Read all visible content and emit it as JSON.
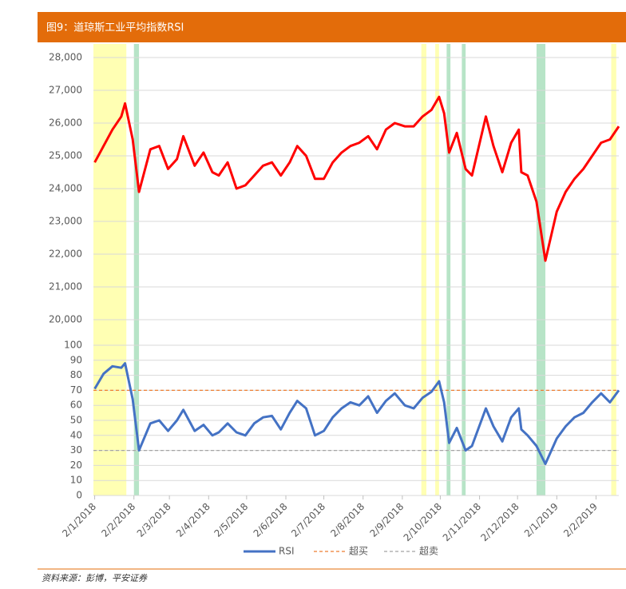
{
  "title": "图9：道琼斯工业平均指数RSI",
  "source": "资料来源：彭博，平安证券",
  "highlights": [
    {
      "start": "2018-01-01",
      "end": "2018-01-27",
      "color": "#FFFFB3"
    },
    {
      "start": "2018-02-02",
      "end": "2018-02-06",
      "color": "#B7E4C7"
    },
    {
      "start": "2018-09-17",
      "end": "2018-09-21",
      "color": "#FFFFB3"
    },
    {
      "start": "2018-09-28",
      "end": "2018-10-01",
      "color": "#FFFFB3"
    },
    {
      "start": "2018-10-07",
      "end": "2018-10-10",
      "color": "#B7E4C7"
    },
    {
      "start": "2018-10-19",
      "end": "2018-10-22",
      "color": "#B7E4C7"
    },
    {
      "start": "2018-12-17",
      "end": "2018-12-24",
      "color": "#B7E4C7"
    },
    {
      "start": "2019-02-14",
      "end": "2019-02-18",
      "color": "#FFFFB3"
    }
  ],
  "chart_data": [
    {
      "type": "line",
      "color": "#FF0000",
      "x": [
        "2018-01-02",
        "2018-01-09",
        "2018-01-16",
        "2018-01-23",
        "2018-01-26",
        "2018-02-01",
        "2018-02-06",
        "2018-02-15",
        "2018-02-22",
        "2018-03-01",
        "2018-03-08",
        "2018-03-13",
        "2018-03-22",
        "2018-03-29",
        "2018-04-05",
        "2018-04-10",
        "2018-04-17",
        "2018-04-24",
        "2018-05-01",
        "2018-05-08",
        "2018-05-15",
        "2018-05-22",
        "2018-05-29",
        "2018-06-05",
        "2018-06-11",
        "2018-06-18",
        "2018-06-25",
        "2018-07-02",
        "2018-07-09",
        "2018-07-16",
        "2018-07-23",
        "2018-07-30",
        "2018-08-06",
        "2018-08-13",
        "2018-08-20",
        "2018-08-27",
        "2018-09-04",
        "2018-09-11",
        "2018-09-18",
        "2018-09-25",
        "2018-10-01",
        "2018-10-05",
        "2018-10-09",
        "2018-10-15",
        "2018-10-22",
        "2018-10-27",
        "2018-11-07",
        "2018-11-13",
        "2018-11-20",
        "2018-11-27",
        "2018-12-03",
        "2018-12-05",
        "2018-12-10",
        "2018-12-17",
        "2018-12-24",
        "2019-01-02",
        "2019-01-09",
        "2019-01-16",
        "2019-01-23",
        "2019-01-30",
        "2019-02-06",
        "2019-02-13",
        "2019-02-20"
      ],
      "values": [
        24800,
        25300,
        25800,
        26200,
        26600,
        25500,
        23900,
        25200,
        25300,
        24600,
        24900,
        25600,
        24700,
        25100,
        24500,
        24400,
        24800,
        24000,
        24100,
        24400,
        24700,
        24800,
        24400,
        24800,
        25300,
        25000,
        24300,
        24300,
        24800,
        25100,
        25300,
        25400,
        25600,
        25200,
        25800,
        26000,
        25900,
        25900,
        26200,
        26400,
        26800,
        26300,
        25100,
        25700,
        24600,
        24400,
        26200,
        25300,
        24500,
        25400,
        25800,
        24500,
        24400,
        23600,
        21800,
        23300,
        23900,
        24300,
        24600,
        25000,
        25400,
        25500,
        25900
      ],
      "ylim": [
        20000,
        28000
      ],
      "yticks": [
        {
          "value": 20000,
          "label": "20,000"
        },
        {
          "value": 21000,
          "label": "21,000"
        },
        {
          "value": 22000,
          "label": "22,000"
        },
        {
          "value": 23000,
          "label": "23,000"
        },
        {
          "value": 24000,
          "label": "24,000"
        },
        {
          "value": 25000,
          "label": "25,000"
        },
        {
          "value": 26000,
          "label": "26,000"
        },
        {
          "value": 27000,
          "label": "27,000"
        },
        {
          "value": 28000,
          "label": "28,000"
        }
      ],
      "grid": true
    },
    {
      "type": "line",
      "x": [
        "2018-01-02",
        "2018-01-09",
        "2018-01-16",
        "2018-01-23",
        "2018-01-26",
        "2018-02-01",
        "2018-02-06",
        "2018-02-15",
        "2018-02-22",
        "2018-03-01",
        "2018-03-08",
        "2018-03-13",
        "2018-03-22",
        "2018-03-29",
        "2018-04-05",
        "2018-04-10",
        "2018-04-17",
        "2018-04-24",
        "2018-05-01",
        "2018-05-08",
        "2018-05-15",
        "2018-05-22",
        "2018-05-29",
        "2018-06-05",
        "2018-06-11",
        "2018-06-18",
        "2018-06-25",
        "2018-07-02",
        "2018-07-09",
        "2018-07-16",
        "2018-07-23",
        "2018-07-30",
        "2018-08-06",
        "2018-08-13",
        "2018-08-20",
        "2018-08-27",
        "2018-09-04",
        "2018-09-11",
        "2018-09-18",
        "2018-09-25",
        "2018-10-01",
        "2018-10-05",
        "2018-10-09",
        "2018-10-15",
        "2018-10-22",
        "2018-10-27",
        "2018-11-07",
        "2018-11-13",
        "2018-11-20",
        "2018-11-27",
        "2018-12-03",
        "2018-12-05",
        "2018-12-10",
        "2018-12-17",
        "2018-12-24",
        "2019-01-02",
        "2019-01-09",
        "2019-01-16",
        "2019-01-23",
        "2019-01-30",
        "2019-02-06",
        "2019-02-13",
        "2019-02-20"
      ],
      "series": [
        {
          "name": "RSI",
          "color": "#4472C4",
          "values": [
            71,
            81,
            86,
            85,
            88,
            64,
            30,
            48,
            50,
            43,
            50,
            57,
            43,
            47,
            40,
            42,
            48,
            42,
            40,
            48,
            52,
            53,
            44,
            55,
            63,
            58,
            40,
            43,
            52,
            58,
            62,
            60,
            66,
            55,
            63,
            68,
            60,
            58,
            65,
            69,
            76,
            62,
            35,
            45,
            30,
            33,
            58,
            46,
            36,
            52,
            58,
            44,
            40,
            33,
            21,
            38,
            46,
            52,
            55,
            62,
            68,
            62,
            70
          ]
        }
      ],
      "reference_lines": [
        {
          "name": "超买",
          "value": 70,
          "color": "#ED7D31"
        },
        {
          "name": "超卖",
          "value": 30,
          "color": "#A5A5A5"
        }
      ],
      "ylim": [
        0,
        100
      ],
      "yticks": [
        0,
        10,
        20,
        30,
        40,
        50,
        60,
        70,
        80,
        90,
        100
      ],
      "xlim": [
        "2018-01-01",
        "2019-02-20"
      ],
      "xticks": [
        {
          "value": "2018-01-02",
          "label": "2/1/2018"
        },
        {
          "value": "2018-02-02",
          "label": "2/2/2018"
        },
        {
          "value": "2018-03-02",
          "label": "2/3/2018"
        },
        {
          "value": "2018-04-02",
          "label": "2/4/2018"
        },
        {
          "value": "2018-05-02",
          "label": "2/5/2018"
        },
        {
          "value": "2018-06-02",
          "label": "2/6/2018"
        },
        {
          "value": "2018-07-02",
          "label": "2/7/2018"
        },
        {
          "value": "2018-08-02",
          "label": "2/8/2018"
        },
        {
          "value": "2018-09-02",
          "label": "2/9/2018"
        },
        {
          "value": "2018-10-02",
          "label": "2/10/2018"
        },
        {
          "value": "2018-11-02",
          "label": "2/11/2018"
        },
        {
          "value": "2018-12-02",
          "label": "2/12/2018"
        },
        {
          "value": "2019-01-02",
          "label": "2/1/2019"
        },
        {
          "value": "2019-02-02",
          "label": "2/2/2019"
        }
      ],
      "grid": true
    }
  ]
}
